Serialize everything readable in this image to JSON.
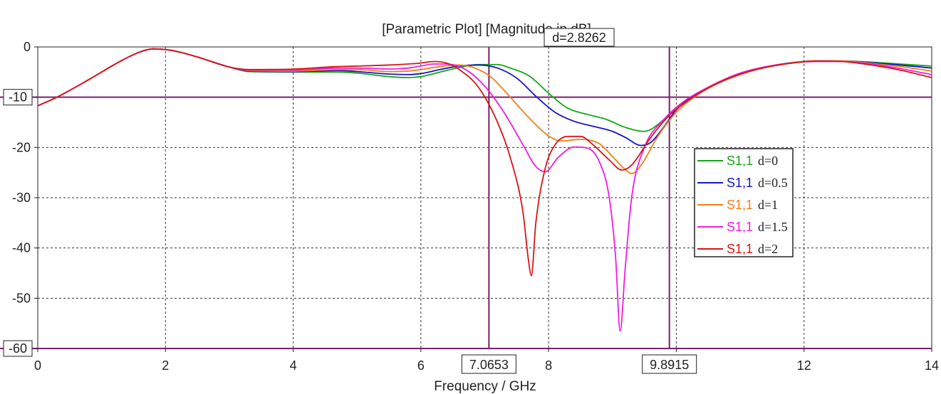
{
  "chart_data": {
    "type": "line",
    "title": "[Parametric Plot] [Magnitude in dB]",
    "xlabel": "Frequency / GHz",
    "ylabel": "",
    "xlim": [
      0,
      14
    ],
    "ylim": [
      -60,
      0
    ],
    "x_ticks": [
      0,
      2,
      4,
      6,
      8,
      10,
      12,
      14
    ],
    "y_ticks": [
      0,
      -10,
      -20,
      -30,
      -40,
      -50,
      -60
    ],
    "grid": true,
    "legend_position": "right",
    "x_markers": [
      {
        "value": 7.0653,
        "label": "7.0653"
      },
      {
        "value": 9.8915,
        "label": "9.8915"
      }
    ],
    "y_markers": [
      {
        "value": -10,
        "label": "-10"
      },
      {
        "value": -60,
        "label": "-60"
      }
    ],
    "delta_annotation": "d=2.8262",
    "series": [
      {
        "name": "S1,1",
        "desc": "d=0",
        "color": "#13a813",
        "points": [
          [
            0,
            -11.7
          ],
          [
            0.3,
            -10.0
          ],
          [
            0.8,
            -6.5
          ],
          [
            1.3,
            -2.8
          ],
          [
            1.6,
            -1.0
          ],
          [
            1.8,
            -0.4
          ],
          [
            2.1,
            -0.7
          ],
          [
            2.5,
            -2.0
          ],
          [
            3.0,
            -4.0
          ],
          [
            3.3,
            -4.9
          ],
          [
            4.0,
            -5.0
          ],
          [
            4.7,
            -5.0
          ],
          [
            5.0,
            -5.2
          ],
          [
            5.5,
            -5.9
          ],
          [
            5.8,
            -6.1
          ],
          [
            6.0,
            -5.9
          ],
          [
            6.3,
            -5.0
          ],
          [
            6.6,
            -4.1
          ],
          [
            6.9,
            -3.5
          ],
          [
            7.2,
            -3.5
          ],
          [
            7.4,
            -4.2
          ],
          [
            7.7,
            -5.8
          ],
          [
            8.0,
            -9.2
          ],
          [
            8.3,
            -12.2
          ],
          [
            8.6,
            -13.4
          ],
          [
            8.9,
            -14.4
          ],
          [
            9.2,
            -16.0
          ],
          [
            9.5,
            -16.8
          ],
          [
            9.8,
            -14.5
          ],
          [
            10.0,
            -12.0
          ],
          [
            10.3,
            -9.5
          ],
          [
            10.7,
            -6.8
          ],
          [
            11.2,
            -4.6
          ],
          [
            11.7,
            -3.3
          ],
          [
            12.2,
            -2.8
          ],
          [
            12.6,
            -2.8
          ],
          [
            13.0,
            -3.0
          ],
          [
            13.5,
            -3.4
          ],
          [
            14.0,
            -3.8
          ]
        ]
      },
      {
        "name": "S1,1",
        "desc": "d=0.5",
        "color": "#1515c8",
        "points": [
          [
            0,
            -11.7
          ],
          [
            0.3,
            -10.0
          ],
          [
            0.8,
            -6.5
          ],
          [
            1.3,
            -2.8
          ],
          [
            1.6,
            -1.0
          ],
          [
            1.8,
            -0.4
          ],
          [
            2.1,
            -0.7
          ],
          [
            2.5,
            -2.0
          ],
          [
            3.0,
            -4.0
          ],
          [
            3.3,
            -4.8
          ],
          [
            4.0,
            -4.9
          ],
          [
            4.7,
            -4.7
          ],
          [
            5.0,
            -4.9
          ],
          [
            5.5,
            -5.4
          ],
          [
            5.8,
            -5.5
          ],
          [
            6.0,
            -5.3
          ],
          [
            6.3,
            -4.5
          ],
          [
            6.6,
            -3.8
          ],
          [
            6.9,
            -3.6
          ],
          [
            7.2,
            -4.2
          ],
          [
            7.5,
            -6.2
          ],
          [
            7.8,
            -9.8
          ],
          [
            8.1,
            -13.0
          ],
          [
            8.4,
            -14.8
          ],
          [
            8.7,
            -15.8
          ],
          [
            9.0,
            -16.8
          ],
          [
            9.2,
            -18.0
          ],
          [
            9.45,
            -19.6
          ],
          [
            9.6,
            -19.0
          ],
          [
            9.8,
            -16.0
          ],
          [
            10.0,
            -12.5
          ],
          [
            10.3,
            -9.6
          ],
          [
            10.7,
            -6.9
          ],
          [
            11.2,
            -4.7
          ],
          [
            11.7,
            -3.4
          ],
          [
            12.2,
            -2.8
          ],
          [
            12.6,
            -2.8
          ],
          [
            13.0,
            -3.1
          ],
          [
            13.5,
            -3.6
          ],
          [
            14.0,
            -4.2
          ]
        ]
      },
      {
        "name": "S1,1",
        "desc": "d=1",
        "color": "#f07f1a",
        "points": [
          [
            0,
            -11.7
          ],
          [
            0.3,
            -10.0
          ],
          [
            0.8,
            -6.5
          ],
          [
            1.3,
            -2.8
          ],
          [
            1.6,
            -1.0
          ],
          [
            1.8,
            -0.4
          ],
          [
            2.1,
            -0.7
          ],
          [
            2.5,
            -2.0
          ],
          [
            3.0,
            -4.0
          ],
          [
            3.3,
            -4.7
          ],
          [
            4.0,
            -4.8
          ],
          [
            4.7,
            -4.5
          ],
          [
            5.0,
            -4.5
          ],
          [
            5.5,
            -4.9
          ],
          [
            5.8,
            -4.8
          ],
          [
            6.0,
            -4.5
          ],
          [
            6.3,
            -3.9
          ],
          [
            6.55,
            -3.6
          ],
          [
            6.8,
            -4.0
          ],
          [
            7.1,
            -6.0
          ],
          [
            7.4,
            -10.0
          ],
          [
            7.7,
            -14.2
          ],
          [
            8.0,
            -17.7
          ],
          [
            8.2,
            -18.7
          ],
          [
            8.5,
            -18.4
          ],
          [
            8.8,
            -19.3
          ],
          [
            9.0,
            -21.8
          ],
          [
            9.2,
            -24.4
          ],
          [
            9.3,
            -25.2
          ],
          [
            9.45,
            -23.5
          ],
          [
            9.7,
            -18.0
          ],
          [
            10.0,
            -13.0
          ],
          [
            10.3,
            -9.8
          ],
          [
            10.7,
            -7.0
          ],
          [
            11.2,
            -4.7
          ],
          [
            11.7,
            -3.4
          ],
          [
            12.2,
            -2.8
          ],
          [
            12.6,
            -2.8
          ],
          [
            13.0,
            -3.2
          ],
          [
            13.5,
            -3.9
          ],
          [
            14.0,
            -4.8
          ]
        ]
      },
      {
        "name": "S1,1",
        "desc": "d=1.5",
        "color": "#ee1ce0",
        "points": [
          [
            0,
            -11.7
          ],
          [
            0.3,
            -10.0
          ],
          [
            0.8,
            -6.5
          ],
          [
            1.3,
            -2.8
          ],
          [
            1.6,
            -1.0
          ],
          [
            1.8,
            -0.4
          ],
          [
            2.1,
            -0.7
          ],
          [
            2.5,
            -2.0
          ],
          [
            3.0,
            -4.0
          ],
          [
            3.3,
            -4.6
          ],
          [
            4.0,
            -4.6
          ],
          [
            4.7,
            -4.2
          ],
          [
            5.0,
            -4.2
          ],
          [
            5.5,
            -4.4
          ],
          [
            5.8,
            -4.2
          ],
          [
            6.0,
            -3.8
          ],
          [
            6.2,
            -3.4
          ],
          [
            6.4,
            -3.4
          ],
          [
            6.7,
            -4.5
          ],
          [
            7.0,
            -7.8
          ],
          [
            7.3,
            -13.0
          ],
          [
            7.6,
            -19.5
          ],
          [
            7.8,
            -23.8
          ],
          [
            7.95,
            -24.8
          ],
          [
            8.15,
            -22.0
          ],
          [
            8.4,
            -19.9
          ],
          [
            8.6,
            -20.1
          ],
          [
            8.8,
            -23.0
          ],
          [
            8.95,
            -30.0
          ],
          [
            9.05,
            -42.0
          ],
          [
            9.12,
            -56.5
          ],
          [
            9.2,
            -44.0
          ],
          [
            9.3,
            -30.0
          ],
          [
            9.5,
            -20.0
          ],
          [
            9.8,
            -14.5
          ],
          [
            10.1,
            -11.0
          ],
          [
            10.5,
            -8.0
          ],
          [
            11.0,
            -5.2
          ],
          [
            11.6,
            -3.5
          ],
          [
            12.2,
            -2.9
          ],
          [
            12.6,
            -2.9
          ],
          [
            13.0,
            -3.3
          ],
          [
            13.5,
            -4.3
          ],
          [
            14.0,
            -5.5
          ]
        ]
      },
      {
        "name": "S1,1",
        "desc": "d=2",
        "color": "#d81515",
        "points": [
          [
            0,
            -11.7
          ],
          [
            0.3,
            -10.0
          ],
          [
            0.8,
            -6.5
          ],
          [
            1.3,
            -2.8
          ],
          [
            1.6,
            -1.0
          ],
          [
            1.8,
            -0.4
          ],
          [
            2.1,
            -0.7
          ],
          [
            2.5,
            -2.0
          ],
          [
            3.0,
            -4.0
          ],
          [
            3.3,
            -4.5
          ],
          [
            4.0,
            -4.4
          ],
          [
            4.7,
            -3.9
          ],
          [
            5.0,
            -3.8
          ],
          [
            5.5,
            -3.6
          ],
          [
            5.8,
            -3.4
          ],
          [
            6.0,
            -3.2
          ],
          [
            6.2,
            -2.9
          ],
          [
            6.4,
            -3.2
          ],
          [
            6.6,
            -4.5
          ],
          [
            6.9,
            -8.0
          ],
          [
            7.2,
            -15.0
          ],
          [
            7.4,
            -22.0
          ],
          [
            7.6,
            -33.0
          ],
          [
            7.68,
            -42.0
          ],
          [
            7.73,
            -45.5
          ],
          [
            7.8,
            -35.0
          ],
          [
            7.95,
            -24.0
          ],
          [
            8.1,
            -19.5
          ],
          [
            8.3,
            -17.8
          ],
          [
            8.5,
            -17.8
          ],
          [
            8.7,
            -19.5
          ],
          [
            8.95,
            -22.5
          ],
          [
            9.15,
            -24.5
          ],
          [
            9.3,
            -23.5
          ],
          [
            9.6,
            -18.0
          ],
          [
            9.9,
            -13.5
          ],
          [
            10.2,
            -10.5
          ],
          [
            10.6,
            -7.5
          ],
          [
            11.1,
            -5.0
          ],
          [
            11.7,
            -3.4
          ],
          [
            12.2,
            -2.8
          ],
          [
            12.6,
            -2.9
          ],
          [
            13.0,
            -3.5
          ],
          [
            13.5,
            -4.6
          ],
          [
            14.0,
            -6.1
          ]
        ]
      }
    ]
  }
}
